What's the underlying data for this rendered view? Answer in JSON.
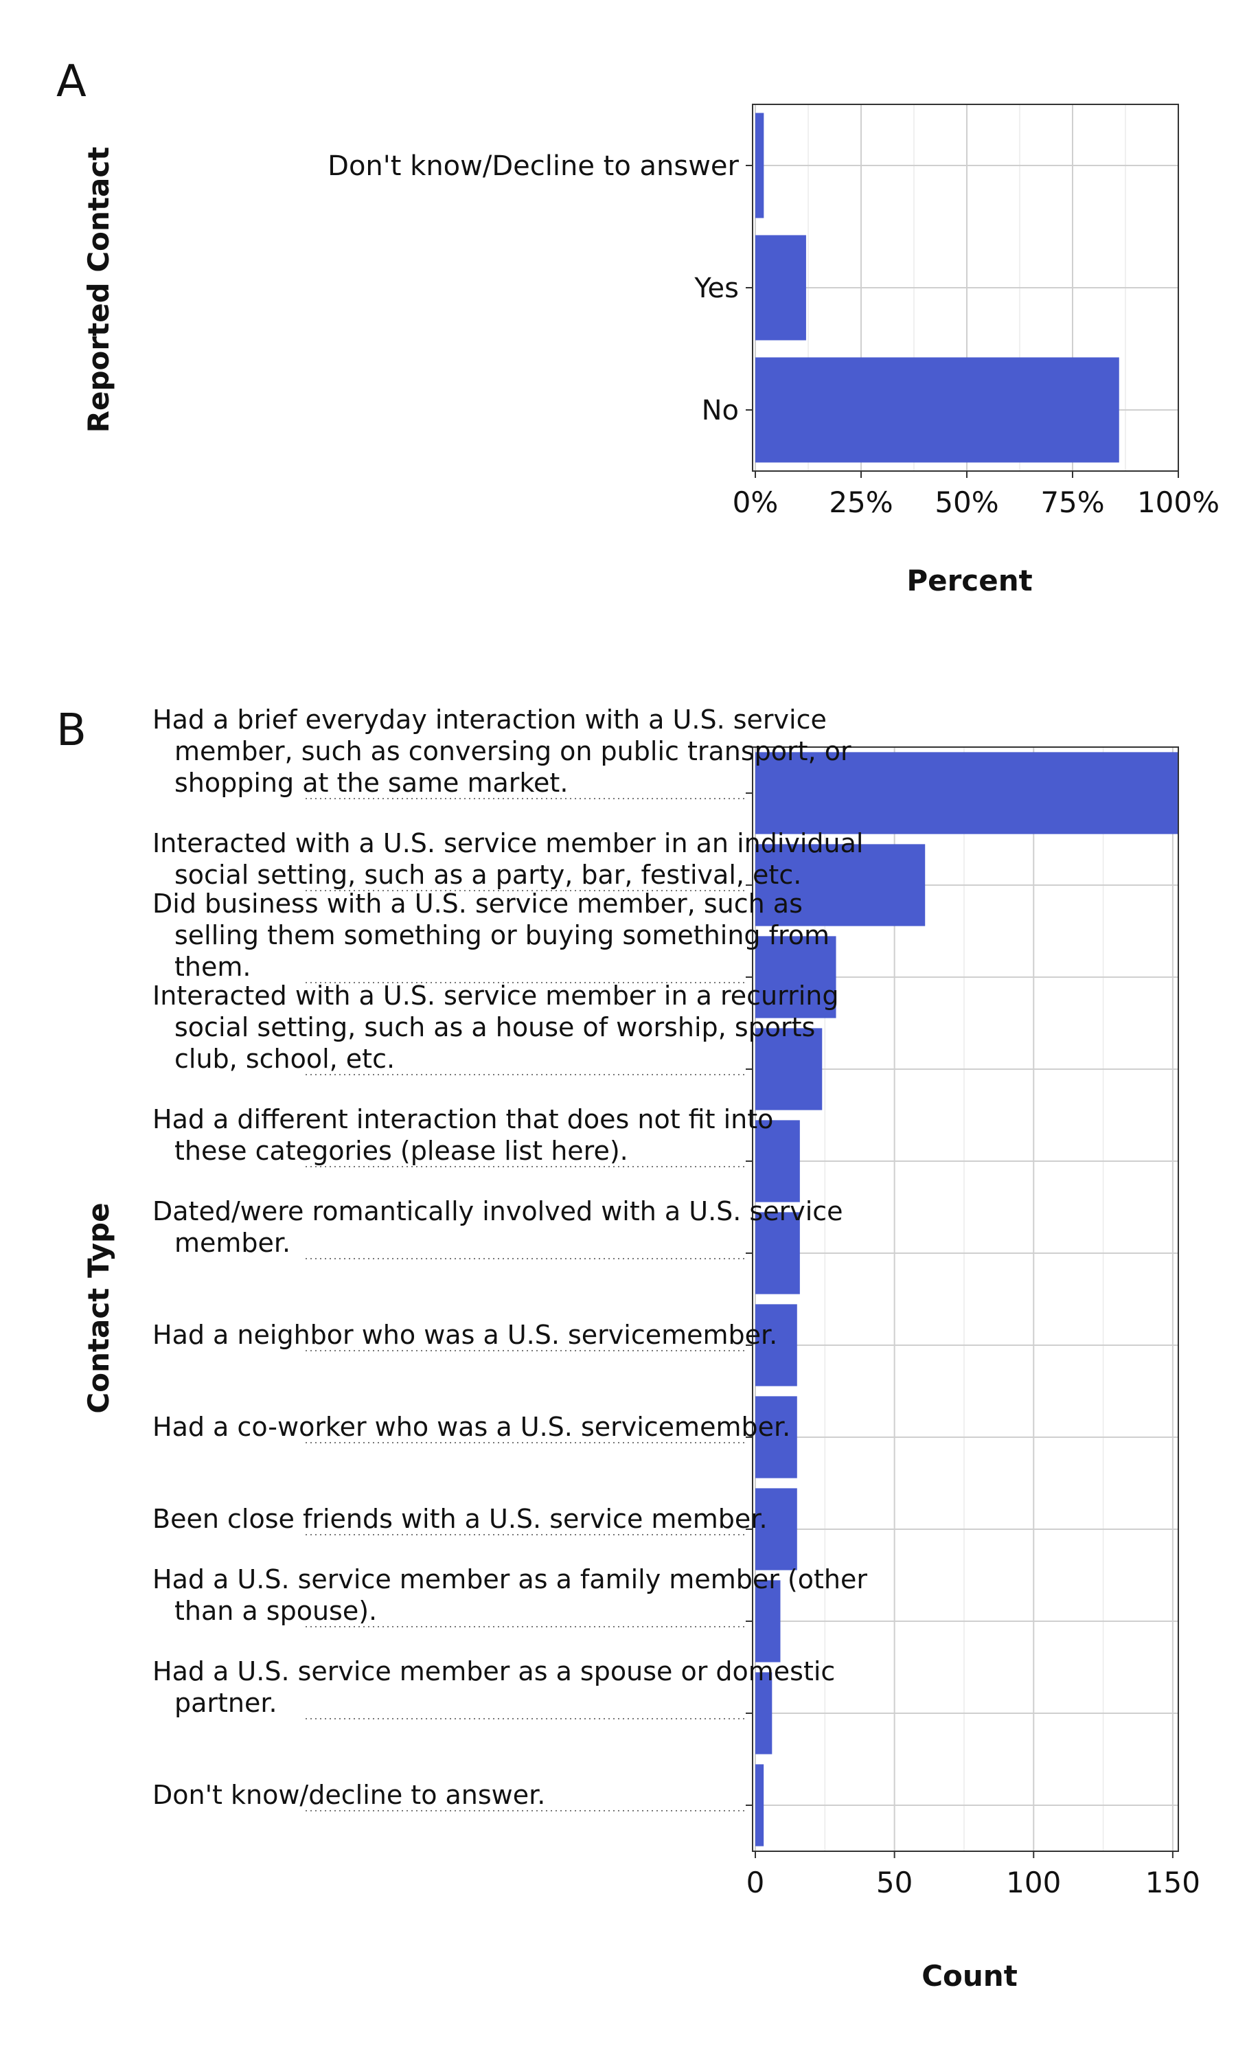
{
  "colors": {
    "bar": "#4a5ccf",
    "grid_major": "#cfcfcf",
    "grid_minor": "#ebebeb",
    "panel_border": "#333333",
    "leader": "#777777",
    "text": "#111111"
  },
  "chart_data": [
    {
      "panel": "A",
      "type": "bar",
      "orientation": "horizontal",
      "title": "",
      "xlabel": "Percent",
      "ylabel": "Reported Contact",
      "categories": [
        "Don't know/Decline to answer",
        "Yes",
        "No"
      ],
      "values": [
        2,
        12,
        86
      ],
      "xlim": [
        0,
        100
      ],
      "x_ticks": [
        0,
        25,
        50,
        75,
        100
      ],
      "x_tick_labels": [
        "0%",
        "25%",
        "50%",
        "75%",
        "100%"
      ],
      "grid": true,
      "legend": "none"
    },
    {
      "panel": "B",
      "type": "bar",
      "orientation": "horizontal",
      "title": "",
      "xlabel": "Count",
      "ylabel": "Contact Type",
      "categories": [
        [
          "Had a brief everyday interaction with a U.S. service",
          "member, such as conversing on public transport, or",
          "shopping at the same market."
        ],
        [
          "Interacted with a U.S. service member in an individual",
          "social setting, such as a party, bar, festival, etc."
        ],
        [
          "Did business with a U.S. service member, such as",
          "selling them something or buying something from",
          "them."
        ],
        [
          "Interacted with a U.S. service member in a recurring",
          "social setting, such as a house of worship, sports",
          "club, school, etc."
        ],
        [
          "Had a different interaction that does not fit into",
          "these categories (please list here)."
        ],
        [
          "Dated/were romantically involved with a U.S. service",
          "member."
        ],
        [
          "Had a neighbor who was a U.S. servicemember."
        ],
        [
          "Had a co-worker who was a U.S. servicemember."
        ],
        [
          "Been close friends with a U.S. service member."
        ],
        [
          "Had a U.S. service member as a family member (other",
          "than a spouse)."
        ],
        [
          "Had a U.S. service member as a spouse or domestic",
          "partner."
        ],
        [
          "Don't know/decline to answer."
        ]
      ],
      "values": [
        152,
        61,
        29,
        24,
        16,
        16,
        15,
        15,
        15,
        9,
        6,
        3
      ],
      "xlim": [
        0,
        152
      ],
      "x_ticks": [
        0,
        50,
        100,
        150
      ],
      "x_tick_labels": [
        "0",
        "50",
        "100",
        "150"
      ],
      "grid": true,
      "legend": "none"
    }
  ]
}
